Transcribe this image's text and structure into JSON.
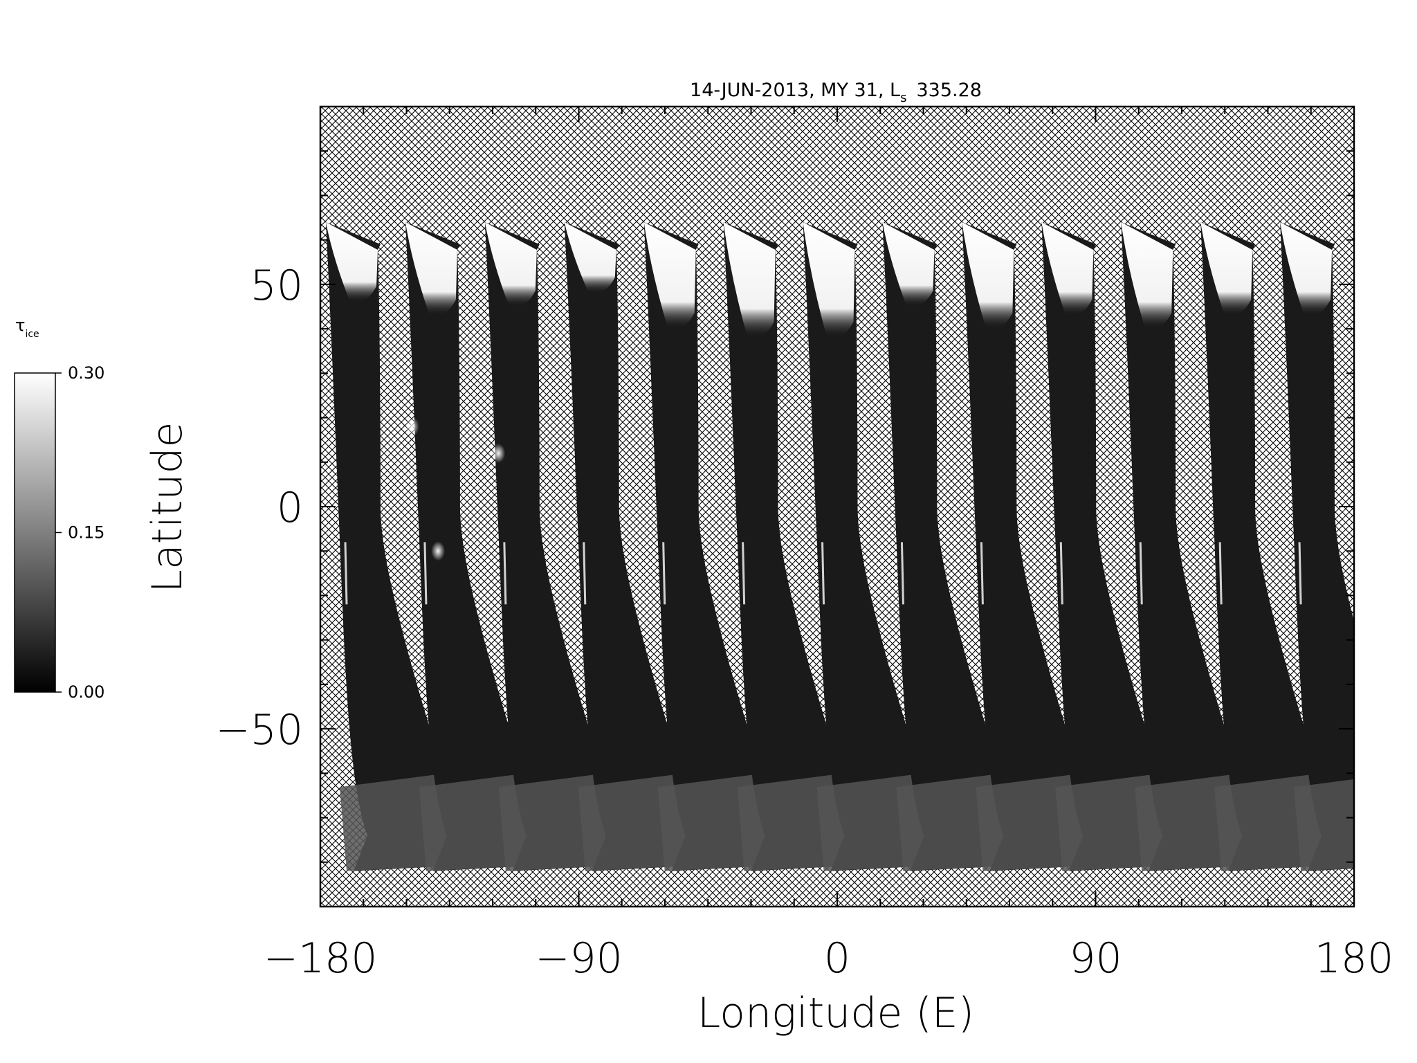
{
  "chart_data": {
    "type": "heatmap",
    "title": {
      "main": "14-JUN-2013, MY 31,  L",
      "subscript": "s",
      "value": "335.28"
    },
    "xlabel": "Longitude (E)",
    "ylabel": "Latitude",
    "xlim": [
      -180,
      180
    ],
    "ylim": [
      -90,
      90
    ],
    "x_ticks": [
      -180,
      -90,
      0,
      90,
      180
    ],
    "x_tick_labels": [
      "−180",
      "−90",
      "0",
      "90",
      "180"
    ],
    "y_ticks": [
      -50,
      0,
      50
    ],
    "y_tick_labels": [
      "−50",
      "0",
      "50"
    ],
    "x_minor_step": 15,
    "y_minor_step": 10,
    "no_data_pattern": "crosshatch",
    "colorbar": {
      "symbol": "τ",
      "symbol_subscript": "ice",
      "min": 0.0,
      "max": 0.3,
      "ticks": [
        0.0,
        0.15,
        0.3
      ],
      "tick_labels": [
        "0.00",
        "0.15",
        "0.30"
      ],
      "colormap": "grayscale"
    },
    "swaths": {
      "count": 13,
      "top_latitude": 64,
      "bottom_latitude": -82,
      "polar_hood_edge_latitudes": [
        48,
        45,
        47,
        50,
        42,
        40,
        40,
        47,
        42,
        45,
        42,
        45,
        45
      ],
      "high_opacity_spots": [
        {
          "lon": -148,
          "lat": 18,
          "value": 0.27
        },
        {
          "lon": -139,
          "lat": -10,
          "value": 0.26
        },
        {
          "lon": -118,
          "lat": 12,
          "value": 0.22
        }
      ],
      "background_opacity": 0.03,
      "south_polar_opacity": 0.1,
      "north_hood_opacity": 0.3
    }
  }
}
